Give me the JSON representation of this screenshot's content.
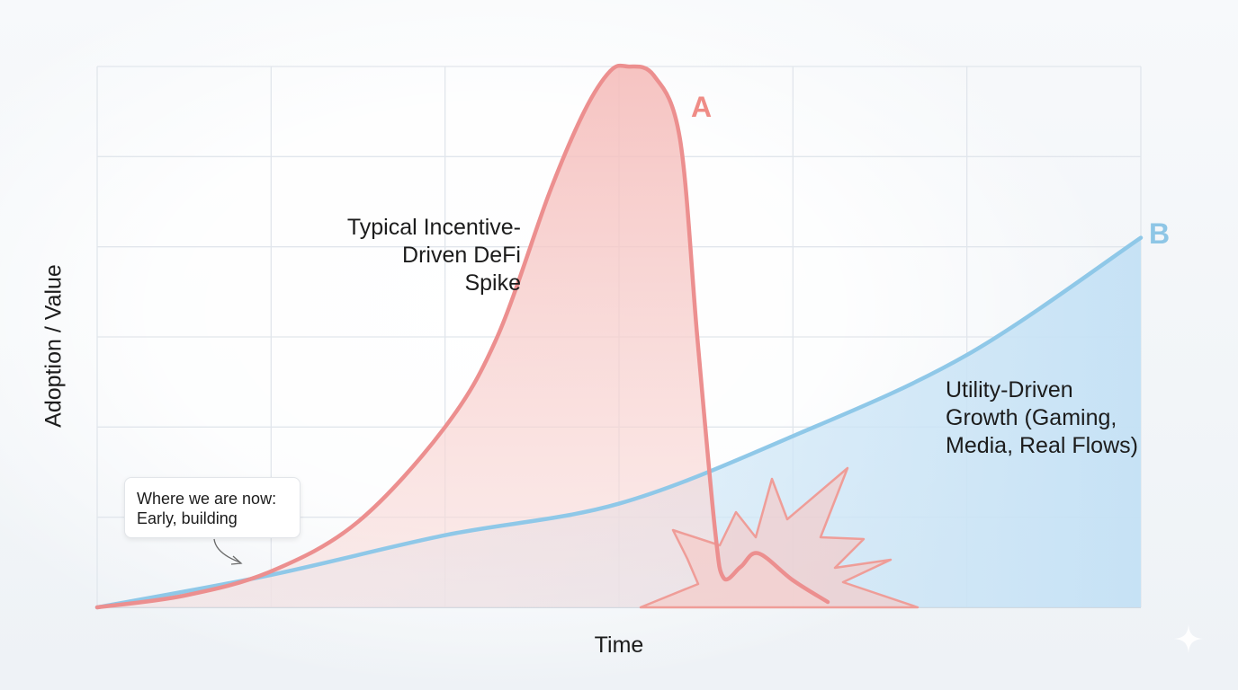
{
  "chart_data": {
    "type": "area",
    "title": "",
    "xlabel": "Time",
    "ylabel": "Adoption / Value",
    "grid": true,
    "x_ticks_labeled": false,
    "y_ticks_labeled": false,
    "xlim": [
      0,
      6
    ],
    "ylim": [
      0,
      6
    ],
    "series": [
      {
        "name": "A",
        "description_label": [
          "Typical Incentive-",
          "Driven DeFi",
          "Spike"
        ],
        "color": "#ec8f8f",
        "fill": "#f6c4c2",
        "x": [
          0,
          0.5,
          1.0,
          1.5,
          2.0,
          2.3,
          2.6,
          2.8,
          2.95,
          3.05,
          3.2,
          3.35,
          3.45,
          3.55,
          3.6,
          3.7,
          3.8,
          4.0,
          4.2
        ],
        "y": [
          0,
          0.13,
          0.4,
          0.95,
          2.0,
          3.0,
          4.6,
          5.5,
          5.95,
          6.0,
          5.9,
          5.2,
          3.0,
          0.9,
          0.33,
          0.45,
          0.6,
          0.3,
          0.06
        ]
      },
      {
        "name": "B",
        "description_label": [
          "Utility-Driven",
          "Growth (Gaming,",
          "Media, Real Flows)"
        ],
        "color": "#8fc8e8",
        "fill": "#cfe6f6",
        "x": [
          0,
          1,
          2,
          3,
          4,
          5,
          6
        ],
        "y": [
          0,
          0.36,
          0.8,
          1.15,
          1.9,
          2.8,
          4.1
        ]
      }
    ],
    "annotations": [
      {
        "text": [
          "Where we are now:",
          "Early, building"
        ],
        "points_to_x": 0.82
      }
    ],
    "colors": {
      "series_a": "#ec8f8f",
      "series_a_letter": "#ef8c86",
      "series_b": "#8fc8e8",
      "series_b_letter": "#8ec6e6",
      "grid": "#e1e6ec",
      "axis": "#c9d1da"
    },
    "decorations": {
      "burst_icon": "starburst-crash-icon",
      "corner_icon": "sparkle-icon"
    }
  }
}
